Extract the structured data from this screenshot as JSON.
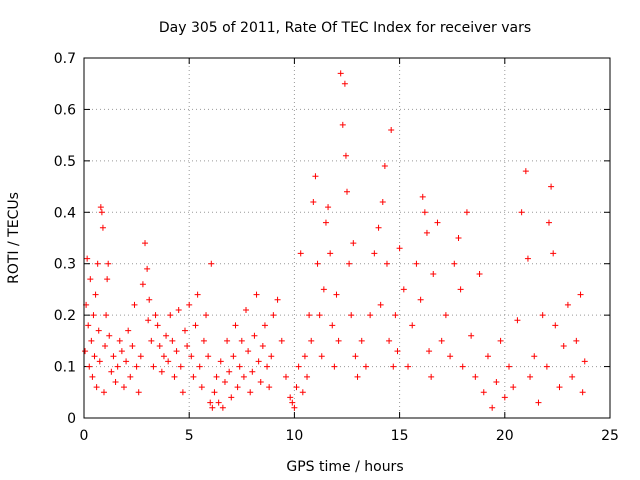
{
  "chart_data": {
    "type": "scatter",
    "title": "Day 305 of 2011, Rate Of TEC Index for receiver vars",
    "xlabel": "GPS time / hours",
    "ylabel": "ROTI / TECUs",
    "xlim": [
      0,
      25
    ],
    "ylim": [
      0,
      0.7
    ],
    "xticks": [
      0,
      5,
      10,
      15,
      20,
      25
    ],
    "yticks": [
      0,
      0.1,
      0.2,
      0.3,
      0.4,
      0.5,
      0.6,
      0.7
    ],
    "xtick_labels": [
      "0",
      "5",
      "10",
      "15",
      "20",
      "25"
    ],
    "ytick_labels": [
      "0",
      "0.1",
      "0.2",
      "0.3",
      "0.4",
      "0.5",
      "0.6",
      "0.7"
    ],
    "grid": true,
    "marker": "+",
    "series_color": "#ff0000",
    "series": [
      {
        "name": "ROTI",
        "points": [
          [
            0.05,
            0.13
          ],
          [
            0.1,
            0.22
          ],
          [
            0.15,
            0.31
          ],
          [
            0.2,
            0.18
          ],
          [
            0.25,
            0.1
          ],
          [
            0.3,
            0.27
          ],
          [
            0.35,
            0.15
          ],
          [
            0.4,
            0.08
          ],
          [
            0.45,
            0.2
          ],
          [
            0.5,
            0.12
          ],
          [
            0.55,
            0.24
          ],
          [
            0.6,
            0.06
          ],
          [
            0.65,
            0.3
          ],
          [
            0.7,
            0.17
          ],
          [
            0.75,
            0.11
          ],
          [
            0.8,
            0.41
          ],
          [
            0.85,
            0.4
          ],
          [
            0.9,
            0.37
          ],
          [
            0.95,
            0.05
          ],
          [
            1.0,
            0.14
          ],
          [
            1.05,
            0.2
          ],
          [
            1.1,
            0.27
          ],
          [
            1.15,
            0.3
          ],
          [
            1.2,
            0.16
          ],
          [
            1.3,
            0.09
          ],
          [
            1.4,
            0.12
          ],
          [
            1.5,
            0.07
          ],
          [
            1.6,
            0.1
          ],
          [
            1.7,
            0.15
          ],
          [
            1.8,
            0.13
          ],
          [
            1.9,
            0.06
          ],
          [
            2.0,
            0.11
          ],
          [
            2.1,
            0.17
          ],
          [
            2.2,
            0.08
          ],
          [
            2.3,
            0.14
          ],
          [
            2.4,
            0.22
          ],
          [
            2.5,
            0.1
          ],
          [
            2.6,
            0.05
          ],
          [
            2.7,
            0.12
          ],
          [
            2.8,
            0.26
          ],
          [
            2.9,
            0.34
          ],
          [
            3.0,
            0.29
          ],
          [
            3.05,
            0.19
          ],
          [
            3.1,
            0.23
          ],
          [
            3.2,
            0.15
          ],
          [
            3.3,
            0.1
          ],
          [
            3.4,
            0.2
          ],
          [
            3.5,
            0.18
          ],
          [
            3.6,
            0.14
          ],
          [
            3.7,
            0.09
          ],
          [
            3.8,
            0.12
          ],
          [
            3.9,
            0.16
          ],
          [
            4.0,
            0.11
          ],
          [
            4.1,
            0.2
          ],
          [
            4.2,
            0.15
          ],
          [
            4.3,
            0.08
          ],
          [
            4.4,
            0.13
          ],
          [
            4.5,
            0.21
          ],
          [
            4.6,
            0.1
          ],
          [
            4.7,
            0.05
          ],
          [
            4.8,
            0.17
          ],
          [
            4.9,
            0.14
          ],
          [
            5.0,
            0.22
          ],
          [
            5.1,
            0.12
          ],
          [
            5.2,
            0.08
          ],
          [
            5.3,
            0.18
          ],
          [
            5.4,
            0.24
          ],
          [
            5.5,
            0.1
          ],
          [
            5.6,
            0.06
          ],
          [
            5.7,
            0.15
          ],
          [
            5.8,
            0.2
          ],
          [
            5.9,
            0.12
          ],
          [
            6.0,
            0.03
          ],
          [
            6.05,
            0.3
          ],
          [
            6.1,
            0.02
          ],
          [
            6.2,
            0.05
          ],
          [
            6.3,
            0.08
          ],
          [
            6.4,
            0.03
          ],
          [
            6.5,
            0.11
          ],
          [
            6.6,
            0.02
          ],
          [
            6.7,
            0.07
          ],
          [
            6.8,
            0.15
          ],
          [
            6.9,
            0.09
          ],
          [
            7.0,
            0.04
          ],
          [
            7.1,
            0.12
          ],
          [
            7.2,
            0.18
          ],
          [
            7.3,
            0.06
          ],
          [
            7.4,
            0.1
          ],
          [
            7.5,
            0.15
          ],
          [
            7.6,
            0.08
          ],
          [
            7.7,
            0.21
          ],
          [
            7.8,
            0.13
          ],
          [
            7.9,
            0.05
          ],
          [
            8.0,
            0.09
          ],
          [
            8.1,
            0.16
          ],
          [
            8.2,
            0.24
          ],
          [
            8.3,
            0.11
          ],
          [
            8.4,
            0.07
          ],
          [
            8.5,
            0.14
          ],
          [
            8.6,
            0.18
          ],
          [
            8.7,
            0.1
          ],
          [
            8.8,
            0.06
          ],
          [
            8.9,
            0.12
          ],
          [
            9.0,
            0.2
          ],
          [
            9.2,
            0.23
          ],
          [
            9.4,
            0.15
          ],
          [
            9.6,
            0.08
          ],
          [
            9.8,
            0.04
          ],
          [
            9.9,
            0.03
          ],
          [
            10.0,
            0.02
          ],
          [
            10.1,
            0.06
          ],
          [
            10.2,
            0.1
          ],
          [
            10.3,
            0.32
          ],
          [
            10.4,
            0.05
          ],
          [
            10.5,
            0.12
          ],
          [
            10.6,
            0.08
          ],
          [
            10.7,
            0.2
          ],
          [
            10.8,
            0.15
          ],
          [
            10.9,
            0.42
          ],
          [
            11.0,
            0.47
          ],
          [
            11.1,
            0.3
          ],
          [
            11.2,
            0.2
          ],
          [
            11.3,
            0.12
          ],
          [
            11.4,
            0.25
          ],
          [
            11.5,
            0.38
          ],
          [
            11.6,
            0.41
          ],
          [
            11.7,
            0.32
          ],
          [
            11.8,
            0.18
          ],
          [
            11.9,
            0.1
          ],
          [
            12.0,
            0.24
          ],
          [
            12.1,
            0.15
          ],
          [
            12.2,
            0.67
          ],
          [
            12.3,
            0.57
          ],
          [
            12.4,
            0.65
          ],
          [
            12.45,
            0.51
          ],
          [
            12.5,
            0.44
          ],
          [
            12.6,
            0.3
          ],
          [
            12.7,
            0.2
          ],
          [
            12.8,
            0.34
          ],
          [
            12.9,
            0.12
          ],
          [
            13.0,
            0.08
          ],
          [
            13.2,
            0.15
          ],
          [
            13.4,
            0.1
          ],
          [
            13.6,
            0.2
          ],
          [
            13.8,
            0.32
          ],
          [
            14.0,
            0.37
          ],
          [
            14.1,
            0.22
          ],
          [
            14.2,
            0.42
          ],
          [
            14.3,
            0.49
          ],
          [
            14.4,
            0.3
          ],
          [
            14.5,
            0.15
          ],
          [
            14.6,
            0.56
          ],
          [
            14.7,
            0.1
          ],
          [
            14.8,
            0.2
          ],
          [
            14.9,
            0.13
          ],
          [
            15.0,
            0.33
          ],
          [
            15.2,
            0.25
          ],
          [
            15.4,
            0.1
          ],
          [
            15.6,
            0.18
          ],
          [
            15.8,
            0.3
          ],
          [
            16.0,
            0.23
          ],
          [
            16.1,
            0.43
          ],
          [
            16.2,
            0.4
          ],
          [
            16.3,
            0.36
          ],
          [
            16.4,
            0.13
          ],
          [
            16.5,
            0.08
          ],
          [
            16.6,
            0.28
          ],
          [
            16.8,
            0.38
          ],
          [
            17.0,
            0.15
          ],
          [
            17.2,
            0.2
          ],
          [
            17.4,
            0.12
          ],
          [
            17.6,
            0.3
          ],
          [
            17.8,
            0.35
          ],
          [
            17.9,
            0.25
          ],
          [
            18.0,
            0.1
          ],
          [
            18.2,
            0.4
          ],
          [
            18.4,
            0.16
          ],
          [
            18.6,
            0.08
          ],
          [
            18.8,
            0.28
          ],
          [
            19.0,
            0.05
          ],
          [
            19.2,
            0.12
          ],
          [
            19.4,
            0.02
          ],
          [
            19.6,
            0.07
          ],
          [
            19.8,
            0.15
          ],
          [
            20.0,
            0.04
          ],
          [
            20.2,
            0.1
          ],
          [
            20.4,
            0.06
          ],
          [
            20.6,
            0.19
          ],
          [
            20.8,
            0.4
          ],
          [
            21.0,
            0.48
          ],
          [
            21.1,
            0.31
          ],
          [
            21.2,
            0.08
          ],
          [
            21.4,
            0.12
          ],
          [
            21.6,
            0.03
          ],
          [
            21.8,
            0.2
          ],
          [
            22.0,
            0.1
          ],
          [
            22.1,
            0.38
          ],
          [
            22.2,
            0.45
          ],
          [
            22.3,
            0.32
          ],
          [
            22.4,
            0.18
          ],
          [
            22.6,
            0.06
          ],
          [
            22.8,
            0.14
          ],
          [
            23.0,
            0.22
          ],
          [
            23.2,
            0.08
          ],
          [
            23.4,
            0.15
          ],
          [
            23.6,
            0.24
          ],
          [
            23.7,
            0.05
          ],
          [
            23.8,
            0.11
          ]
        ]
      }
    ]
  }
}
